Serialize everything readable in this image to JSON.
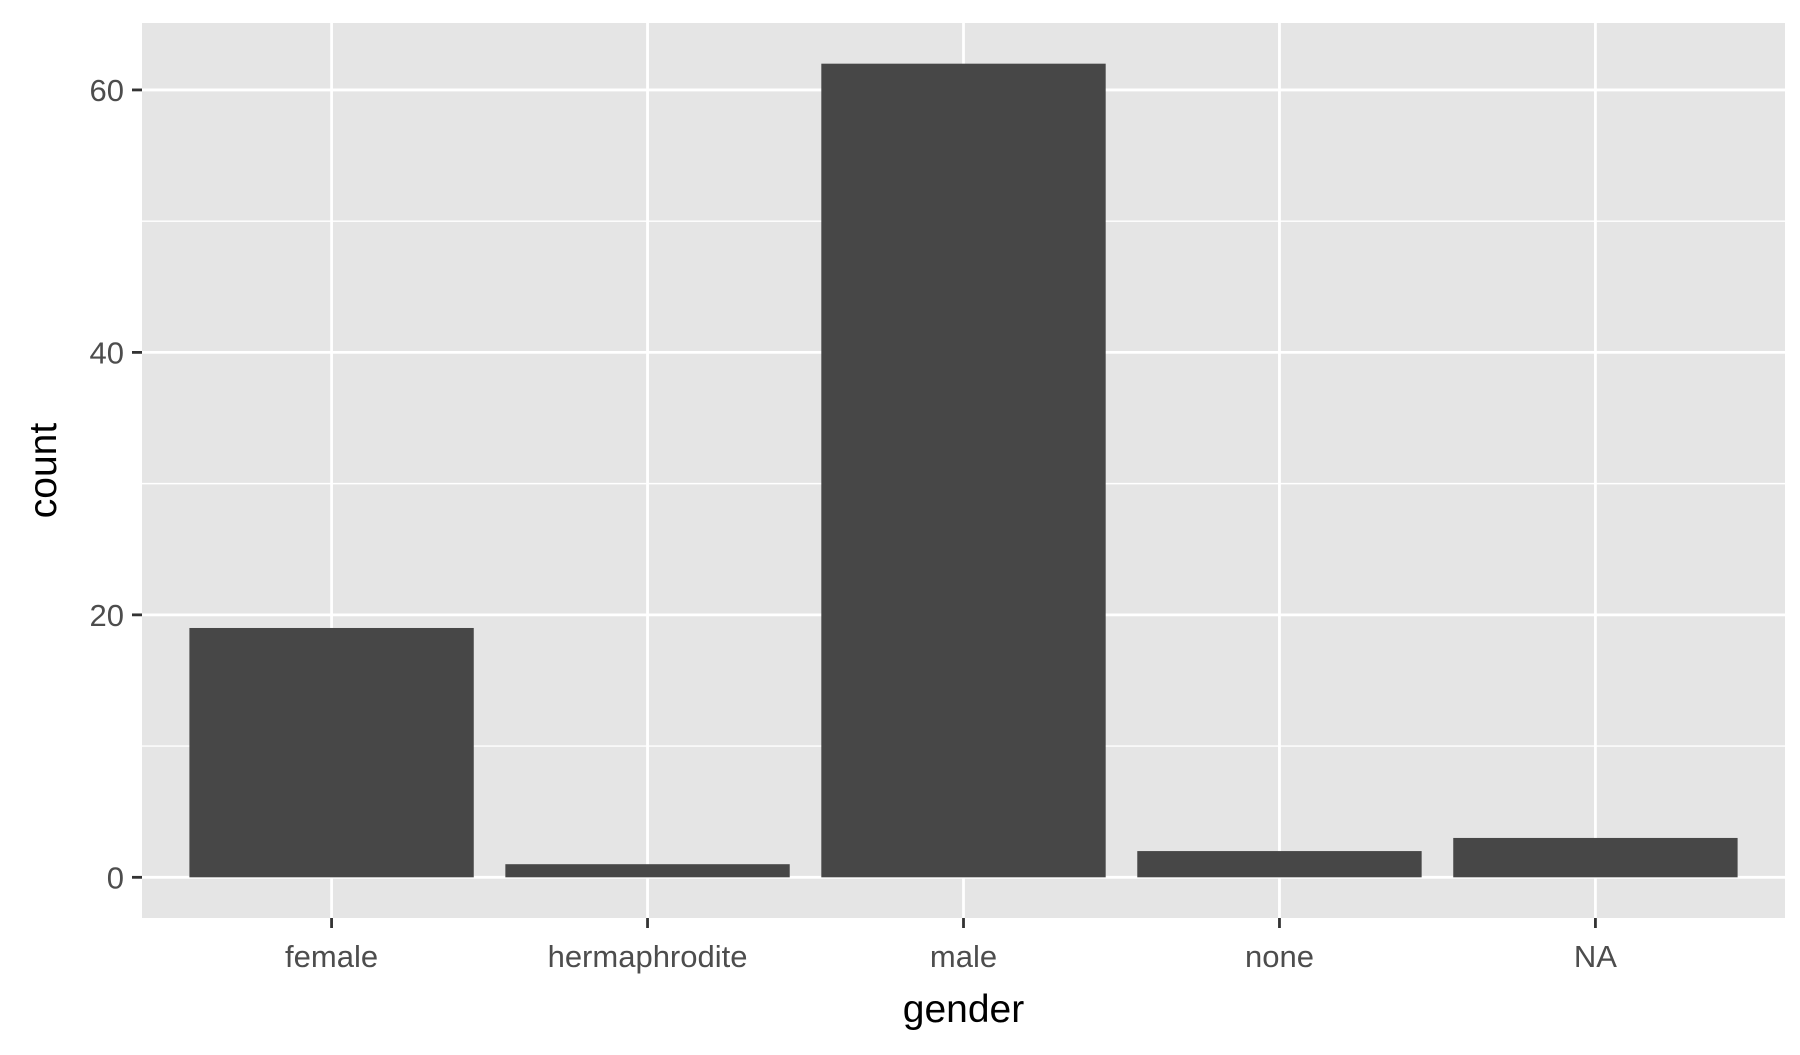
{
  "chart_data": {
    "type": "bar",
    "title": "",
    "xlabel": "gender",
    "ylabel": "count",
    "categories": [
      "female",
      "hermaphrodite",
      "male",
      "none",
      "NA"
    ],
    "values": [
      19,
      1,
      62,
      2,
      3
    ],
    "ylim": [
      -3.1,
      65.1
    ],
    "yticks": [
      0,
      20,
      40,
      60
    ],
    "grid": true,
    "legend": "none",
    "colors": {
      "panel_background": "#e5e5e5",
      "grid_line": "#ffffff",
      "bar_fill": "#474747",
      "axis_text": "#4d4d4d",
      "axis_title": "#000000",
      "tick_mark": "#333333"
    }
  }
}
